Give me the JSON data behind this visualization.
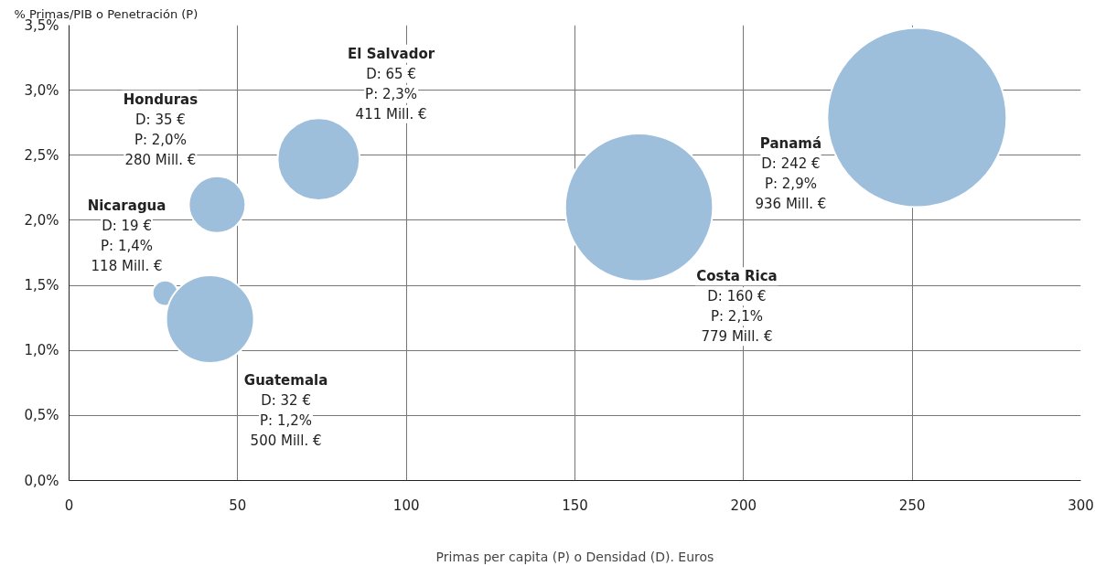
{
  "chart_data": {
    "type": "bubble",
    "ylabel": "% Primas/PIB o Penetración (P)",
    "xlabel": "Primas per capita (P) o Densidad (D). Euros",
    "series": [
      {
        "color": "#9dbfdc",
        "x": [
          28.5,
          41.8,
          43.9,
          74.0,
          169,
          251.4
        ],
        "values": [
          1.44,
          1.24,
          2.12,
          2.47,
          2.1,
          2.79
        ],
        "sizes": [
          0.02,
          0.24,
          0.1,
          0.21,
          0.68,
          1
        ]
      }
    ],
    "annotations": [
      "Nicaragua\nD: 19 €\nP: 1,4%\n118 Mill. €",
      "Guatemala\nD: 32 €\nP: 1,2%\n500 Mill. €",
      "Honduras\nD: 35 €\nP: 2,0%\n280 Mill. €",
      "El Salvador\nD: 65 €\nP: 2,3%\n411 Mill. €",
      "Costa Rica\nD: 160 €\nP: 2,1%\n779 Mill. €",
      "Panamá\nD: 242 €\nP: 2,9%\n936 Mill. €"
    ],
    "xlim": [
      0,
      300
    ],
    "xticks": [
      0,
      50,
      100,
      150,
      200,
      250,
      300
    ],
    "ylim": [
      0,
      3.5
    ],
    "yticks": [
      {
        "value": 0,
        "label": "0,0%"
      },
      {
        "value": 0.5,
        "label": "0,5%"
      },
      {
        "value": 1,
        "label": "1,0%"
      },
      {
        "value": 1.5,
        "label": "1,5%"
      },
      {
        "value": 2,
        "label": "2,0%"
      },
      {
        "value": 2.5,
        "label": "2,5%"
      },
      {
        "value": 3,
        "label": "3,0%"
      },
      {
        "value": 3.5,
        "label": "3,5%"
      }
    ],
    "grid": true
  }
}
